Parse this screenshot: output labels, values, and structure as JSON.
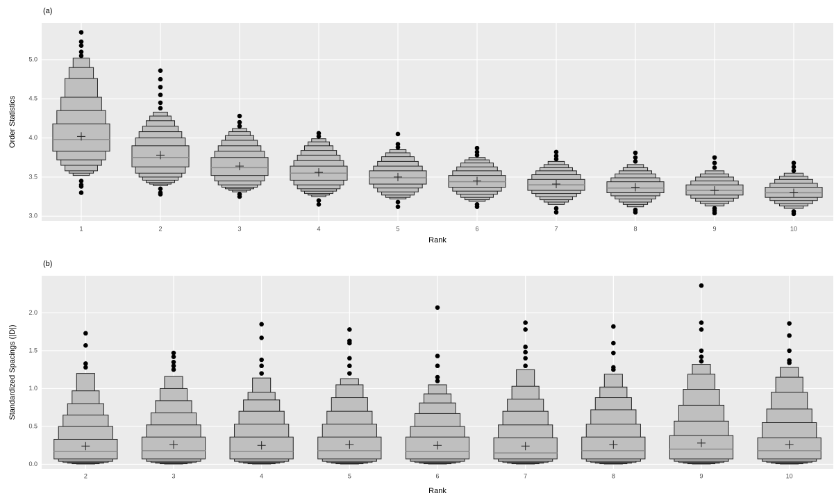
{
  "chart_data": [
    {
      "type": "boxen",
      "panel_label": "(a)",
      "x_label": "Rank",
      "y_label": "Order Statistics",
      "categories": [
        "1",
        "2",
        "3",
        "4",
        "5",
        "6",
        "7",
        "8",
        "9",
        "10"
      ],
      "ylim": [
        2.94,
        5.47
      ],
      "yticks": [
        {
          "value": 3,
          "label": "3.0"
        },
        {
          "value": 3.5,
          "label": "3.5"
        },
        {
          "value": 4,
          "label": "4.0"
        },
        {
          "value": 4.5,
          "label": "4.5"
        },
        {
          "value": 5,
          "label": "5.0"
        }
      ],
      "grid": true,
      "color": "#bfbfbf",
      "medians": [
        3.98,
        3.75,
        3.62,
        3.55,
        3.49,
        3.44,
        3.4,
        3.36,
        3.33,
        3.3
      ],
      "means": [
        4.02,
        3.78,
        3.64,
        3.56,
        3.5,
        3.45,
        3.41,
        3.37,
        3.33,
        3.3
      ],
      "boxes": [
        [
          [
            3.83,
            4.18
          ],
          [
            3.72,
            4.35
          ],
          [
            3.65,
            4.52
          ],
          [
            3.58,
            4.76
          ],
          [
            3.55,
            4.9
          ],
          [
            3.52,
            5.02
          ]
        ],
        [
          [
            3.63,
            3.9
          ],
          [
            3.55,
            4.0
          ],
          [
            3.5,
            4.08
          ],
          [
            3.46,
            4.15
          ],
          [
            3.43,
            4.22
          ],
          [
            3.41,
            4.28
          ],
          [
            3.39,
            4.33
          ]
        ],
        [
          [
            3.52,
            3.75
          ],
          [
            3.45,
            3.83
          ],
          [
            3.4,
            3.9
          ],
          [
            3.37,
            3.97
          ],
          [
            3.35,
            4.03
          ],
          [
            3.33,
            4.08
          ],
          [
            3.31,
            4.12
          ]
        ],
        [
          [
            3.46,
            3.64
          ],
          [
            3.4,
            3.71
          ],
          [
            3.35,
            3.78
          ],
          [
            3.32,
            3.84
          ],
          [
            3.29,
            3.9
          ],
          [
            3.27,
            3.95
          ],
          [
            3.25,
            3.99
          ]
        ],
        [
          [
            3.41,
            3.58
          ],
          [
            3.36,
            3.64
          ],
          [
            3.31,
            3.7
          ],
          [
            3.27,
            3.76
          ],
          [
            3.24,
            3.81
          ],
          [
            3.22,
            3.85
          ]
        ],
        [
          [
            3.37,
            3.52
          ],
          [
            3.32,
            3.58
          ],
          [
            3.28,
            3.63
          ],
          [
            3.24,
            3.68
          ],
          [
            3.21,
            3.72
          ],
          [
            3.19,
            3.75
          ]
        ],
        [
          [
            3.33,
            3.47
          ],
          [
            3.29,
            3.53
          ],
          [
            3.25,
            3.58
          ],
          [
            3.21,
            3.62
          ],
          [
            3.18,
            3.66
          ],
          [
            3.15,
            3.7
          ]
        ],
        [
          [
            3.3,
            3.44
          ],
          [
            3.26,
            3.49
          ],
          [
            3.22,
            3.54
          ],
          [
            3.18,
            3.58
          ],
          [
            3.15,
            3.62
          ],
          [
            3.12,
            3.66
          ]
        ],
        [
          [
            3.27,
            3.4
          ],
          [
            3.23,
            3.45
          ],
          [
            3.19,
            3.5
          ],
          [
            3.16,
            3.54
          ],
          [
            3.13,
            3.58
          ]
        ],
        [
          [
            3.24,
            3.37
          ],
          [
            3.2,
            3.42
          ],
          [
            3.16,
            3.47
          ],
          [
            3.13,
            3.51
          ],
          [
            3.1,
            3.55
          ]
        ]
      ],
      "outliers": [
        [
          3.45,
          3.4,
          3.38,
          3.3,
          5.05,
          5.1,
          5.18,
          5.23,
          5.35
        ],
        [
          3.35,
          3.3,
          3.28,
          4.38,
          4.45,
          4.55,
          4.65,
          4.75,
          4.86
        ],
        [
          3.28,
          3.25,
          4.15,
          4.2,
          4.28
        ],
        [
          3.2,
          3.15,
          4.02,
          4.06
        ],
        [
          3.18,
          3.12,
          3.88,
          3.92,
          4.05
        ],
        [
          3.15,
          3.12,
          3.78,
          3.82,
          3.87
        ],
        [
          3.1,
          3.05,
          3.73,
          3.77,
          3.82
        ],
        [
          3.08,
          3.05,
          3.7,
          3.75,
          3.81
        ],
        [
          3.1,
          3.07,
          3.04,
          3.62,
          3.68,
          3.75
        ],
        [
          3.06,
          3.03,
          3.58,
          3.63,
          3.68
        ]
      ]
    },
    {
      "type": "boxen",
      "panel_label": "(b)",
      "x_label": "Rank",
      "y_label": "Standardized Spacings (|D|)",
      "categories": [
        "2",
        "3",
        "4",
        "5",
        "6",
        "7",
        "8",
        "9",
        "10"
      ],
      "ylim": [
        -0.06,
        2.49
      ],
      "yticks": [
        {
          "value": 0,
          "label": "0.0"
        },
        {
          "value": 0.5,
          "label": "0.5"
        },
        {
          "value": 1,
          "label": "1.0"
        },
        {
          "value": 1.5,
          "label": "1.5"
        },
        {
          "value": 2,
          "label": "2.0"
        }
      ],
      "grid": true,
      "color": "#bfbfbf",
      "medians": [
        0.17,
        0.18,
        0.17,
        0.18,
        0.17,
        0.15,
        0.18,
        0.2,
        0.18
      ],
      "means": [
        0.24,
        0.26,
        0.25,
        0.26,
        0.25,
        0.24,
        0.26,
        0.28,
        0.26
      ],
      "boxes": [
        [
          [
            0.07,
            0.33
          ],
          [
            0.04,
            0.5
          ],
          [
            0.025,
            0.65
          ],
          [
            0.015,
            0.8
          ],
          [
            0.008,
            0.97
          ],
          [
            0.004,
            1.2
          ]
        ],
        [
          [
            0.07,
            0.36
          ],
          [
            0.04,
            0.52
          ],
          [
            0.025,
            0.68
          ],
          [
            0.015,
            0.84
          ],
          [
            0.008,
            1.0
          ],
          [
            0.004,
            1.16
          ]
        ],
        [
          [
            0.07,
            0.36
          ],
          [
            0.04,
            0.53
          ],
          [
            0.025,
            0.7
          ],
          [
            0.015,
            0.85
          ],
          [
            0.008,
            0.95
          ],
          [
            0.004,
            1.14
          ]
        ],
        [
          [
            0.07,
            0.36
          ],
          [
            0.04,
            0.53
          ],
          [
            0.025,
            0.7
          ],
          [
            0.015,
            0.88
          ],
          [
            0.008,
            1.05
          ],
          [
            0.004,
            1.13
          ]
        ],
        [
          [
            0.07,
            0.36
          ],
          [
            0.04,
            0.5
          ],
          [
            0.025,
            0.67
          ],
          [
            0.015,
            0.81
          ],
          [
            0.008,
            0.93
          ],
          [
            0.004,
            1.05
          ]
        ],
        [
          [
            0.07,
            0.35
          ],
          [
            0.04,
            0.52
          ],
          [
            0.025,
            0.7
          ],
          [
            0.015,
            0.86
          ],
          [
            0.008,
            1.03
          ],
          [
            0.004,
            1.25
          ]
        ],
        [
          [
            0.07,
            0.36
          ],
          [
            0.04,
            0.53
          ],
          [
            0.025,
            0.72
          ],
          [
            0.015,
            0.88
          ],
          [
            0.008,
            1.02
          ],
          [
            0.004,
            1.19
          ]
        ],
        [
          [
            0.07,
            0.38
          ],
          [
            0.04,
            0.57
          ],
          [
            0.025,
            0.78
          ],
          [
            0.015,
            0.99
          ],
          [
            0.008,
            1.19
          ],
          [
            0.004,
            1.32
          ]
        ],
        [
          [
            0.07,
            0.35
          ],
          [
            0.04,
            0.55
          ],
          [
            0.025,
            0.73
          ],
          [
            0.015,
            0.95
          ],
          [
            0.008,
            1.15
          ],
          [
            0.004,
            1.28
          ]
        ]
      ],
      "outliers": [
        [
          1.28,
          1.33,
          1.57,
          1.73
        ],
        [
          1.25,
          1.3,
          1.35,
          1.42,
          1.47
        ],
        [
          1.2,
          1.3,
          1.38,
          1.67,
          1.85
        ],
        [
          1.2,
          1.3,
          1.4,
          1.6,
          1.63,
          1.78
        ],
        [
          1.1,
          1.15,
          1.3,
          1.43,
          2.07
        ],
        [
          1.3,
          1.4,
          1.48,
          1.55,
          1.78,
          1.87
        ],
        [
          1.25,
          1.28,
          1.47,
          1.6,
          1.82
        ],
        [
          1.36,
          1.42,
          1.5,
          1.78,
          1.87,
          2.36
        ],
        [
          1.34,
          1.37,
          1.5,
          1.7,
          1.86
        ]
      ]
    }
  ]
}
